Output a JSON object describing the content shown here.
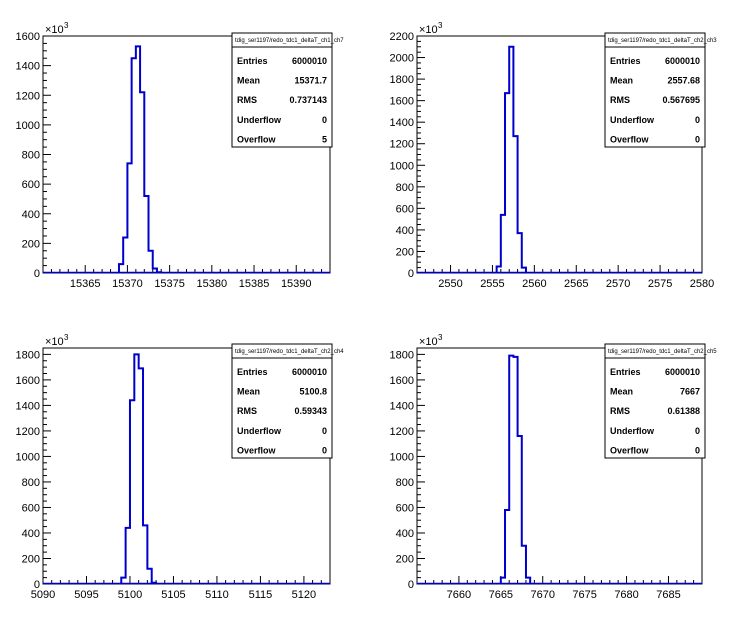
{
  "colors": {
    "histogram": "#0000cc",
    "axis": "#000000",
    "background": "#ffffff"
  },
  "chart_data": [
    {
      "type": "bar",
      "style": "step-histogram",
      "title": "tdig_ser1197/redo_tdc1_deltaT_ch1_ch7",
      "xlim": [
        15360,
        15394
      ],
      "ylim": [
        0,
        1600
      ],
      "y_multiplier_label": "×10",
      "y_multiplier_exp": "3",
      "x_ticks": [
        "15365",
        "15370",
        "15375",
        "15380",
        "15385",
        "15390"
      ],
      "x_tick_values": [
        15365,
        15370,
        15375,
        15380,
        15385,
        15390
      ],
      "y_ticks": [
        "0",
        "200",
        "400",
        "600",
        "800",
        "1000",
        "1200",
        "1400",
        "1600"
      ],
      "y_tick_values": [
        0,
        200,
        400,
        600,
        800,
        1000,
        1200,
        1400,
        1600
      ],
      "bins": [
        {
          "x0": 15369.0,
          "x1": 15369.5,
          "y": 60
        },
        {
          "x0": 15369.5,
          "x1": 15370.0,
          "y": 240
        },
        {
          "x0": 15370.0,
          "x1": 15370.5,
          "y": 740
        },
        {
          "x0": 15370.5,
          "x1": 15371.0,
          "y": 1450
        },
        {
          "x0": 15371.0,
          "x1": 15371.5,
          "y": 1530
        },
        {
          "x0": 15371.5,
          "x1": 15372.0,
          "y": 1220
        },
        {
          "x0": 15372.0,
          "x1": 15372.5,
          "y": 520
        },
        {
          "x0": 15372.5,
          "x1": 15373.0,
          "y": 150
        },
        {
          "x0": 15373.0,
          "x1": 15373.5,
          "y": 30
        },
        {
          "x0": 15373.5,
          "x1": 15374.0,
          "y": 5
        }
      ],
      "stats": [
        {
          "label": "Entries",
          "value": "6000010"
        },
        {
          "label": "Mean",
          "value": "15371.7"
        },
        {
          "label": "RMS",
          "value": "0.737143"
        },
        {
          "label": "Underflow",
          "value": "0"
        },
        {
          "label": "Overflow",
          "value": "5"
        }
      ]
    },
    {
      "type": "bar",
      "style": "step-histogram",
      "title": "tdig_ser1197/redo_tdc1_deltaT_ch2_ch3",
      "xlim": [
        2546,
        2580
      ],
      "ylim": [
        0,
        2200
      ],
      "y_multiplier_label": "×10",
      "y_multiplier_exp": "3",
      "x_ticks": [
        "2550",
        "2555",
        "2560",
        "2565",
        "2570",
        "2575",
        "2580"
      ],
      "x_tick_values": [
        2550,
        2555,
        2560,
        2565,
        2570,
        2575,
        2580
      ],
      "y_ticks": [
        "0",
        "200",
        "400",
        "600",
        "800",
        "1000",
        "1200",
        "1400",
        "1600",
        "1800",
        "2000",
        "2200"
      ],
      "y_tick_values": [
        0,
        200,
        400,
        600,
        800,
        1000,
        1200,
        1400,
        1600,
        1800,
        2000,
        2200
      ],
      "bins": [
        {
          "x0": 2555.5,
          "x1": 2556.0,
          "y": 60
        },
        {
          "x0": 2556.0,
          "x1": 2556.5,
          "y": 540
        },
        {
          "x0": 2556.5,
          "x1": 2557.0,
          "y": 1670
        },
        {
          "x0": 2557.0,
          "x1": 2557.5,
          "y": 2100
        },
        {
          "x0": 2557.5,
          "x1": 2558.0,
          "y": 1270
        },
        {
          "x0": 2558.0,
          "x1": 2558.5,
          "y": 370
        },
        {
          "x0": 2558.5,
          "x1": 2559.0,
          "y": 50
        }
      ],
      "stats": [
        {
          "label": "Entries",
          "value": "6000010"
        },
        {
          "label": "Mean",
          "value": "2557.68"
        },
        {
          "label": "RMS",
          "value": "0.567695"
        },
        {
          "label": "Underflow",
          "value": "0"
        },
        {
          "label": "Overflow",
          "value": "0"
        }
      ]
    },
    {
      "type": "bar",
      "style": "step-histogram",
      "title": "tdig_ser1197/redo_tdc1_deltaT_ch2_ch4",
      "xlim": [
        5090,
        5123
      ],
      "ylim": [
        0,
        1850
      ],
      "y_multiplier_label": "×10",
      "y_multiplier_exp": "3",
      "x_ticks": [
        "5090",
        "5095",
        "5100",
        "5105",
        "5110",
        "5115",
        "5120"
      ],
      "x_tick_values": [
        5090,
        5095,
        5100,
        5105,
        5110,
        5115,
        5120
      ],
      "y_ticks": [
        "0",
        "200",
        "400",
        "600",
        "800",
        "1000",
        "1200",
        "1400",
        "1600",
        "1800"
      ],
      "y_tick_values": [
        0,
        200,
        400,
        600,
        800,
        1000,
        1200,
        1400,
        1600,
        1800
      ],
      "bins": [
        {
          "x0": 5099.0,
          "x1": 5099.5,
          "y": 50
        },
        {
          "x0": 5099.5,
          "x1": 5100.0,
          "y": 440
        },
        {
          "x0": 5100.0,
          "x1": 5100.5,
          "y": 1440
        },
        {
          "x0": 5100.5,
          "x1": 5101.0,
          "y": 1800
        },
        {
          "x0": 5101.0,
          "x1": 5101.5,
          "y": 1690
        },
        {
          "x0": 5101.5,
          "x1": 5102.0,
          "y": 460
        },
        {
          "x0": 5102.0,
          "x1": 5102.5,
          "y": 120
        },
        {
          "x0": 5102.5,
          "x1": 5103.0,
          "y": 10
        }
      ],
      "stats": [
        {
          "label": "Entries",
          "value": "6000010"
        },
        {
          "label": "Mean",
          "value": "5100.8"
        },
        {
          "label": "RMS",
          "value": "0.59343"
        },
        {
          "label": "Underflow",
          "value": "0"
        },
        {
          "label": "Overflow",
          "value": "0"
        }
      ]
    },
    {
      "type": "bar",
      "style": "step-histogram",
      "title": "tdig_ser1197/redo_tdc1_deltaT_ch2_ch5",
      "xlim": [
        7655,
        7689
      ],
      "ylim": [
        0,
        1850
      ],
      "y_multiplier_label": "×10",
      "y_multiplier_exp": "3",
      "x_ticks": [
        "7660",
        "7665",
        "7670",
        "7675",
        "7680",
        "7685"
      ],
      "x_tick_values": [
        7660,
        7665,
        7670,
        7675,
        7680,
        7685
      ],
      "y_ticks": [
        "0",
        "200",
        "400",
        "600",
        "800",
        "1000",
        "1200",
        "1400",
        "1600",
        "1800"
      ],
      "y_tick_values": [
        0,
        200,
        400,
        600,
        800,
        1000,
        1200,
        1400,
        1600,
        1800
      ],
      "bins": [
        {
          "x0": 7665.0,
          "x1": 7665.5,
          "y": 50
        },
        {
          "x0": 7665.5,
          "x1": 7666.0,
          "y": 580
        },
        {
          "x0": 7666.0,
          "x1": 7666.5,
          "y": 1790
        },
        {
          "x0": 7666.5,
          "x1": 7667.0,
          "y": 1780
        },
        {
          "x0": 7667.0,
          "x1": 7667.5,
          "y": 1160
        },
        {
          "x0": 7667.5,
          "x1": 7668.0,
          "y": 300
        },
        {
          "x0": 7668.0,
          "x1": 7668.5,
          "y": 50
        }
      ],
      "stats": [
        {
          "label": "Entries",
          "value": "6000010"
        },
        {
          "label": "Mean",
          "value": "7667"
        },
        {
          "label": "RMS",
          "value": "0.61388"
        },
        {
          "label": "Underflow",
          "value": "0"
        },
        {
          "label": "Overflow",
          "value": "0"
        }
      ]
    }
  ]
}
